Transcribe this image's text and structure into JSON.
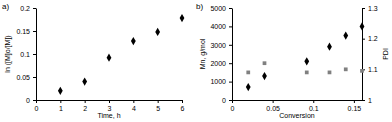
{
  "chart_data": [
    {
      "type": "scatter",
      "title": "a)",
      "x_label": "Time, h",
      "y_label": "ln ([M]o/[M])",
      "x": [
        1,
        2,
        3,
        4,
        5,
        6
      ],
      "series": [
        {
          "color": "#000000",
          "marker": "diamond",
          "values": [
            0.02,
            0.04,
            0.092,
            0.128,
            0.148,
            0.178
          ]
        }
      ],
      "xlim": [
        0,
        6
      ],
      "xticks": [
        0,
        1,
        2,
        3,
        4,
        5,
        6
      ],
      "ylim": [
        0,
        0.2
      ],
      "yticks": [
        0,
        0.05,
        0.1,
        0.15,
        0.2
      ]
    },
    {
      "type": "scatter",
      "title": "b)",
      "x_label": "Conversion",
      "y_label": "Mn, g/mol",
      "y2_label": "PDI",
      "x": [
        0.02,
        0.04,
        0.092,
        0.12,
        0.14,
        0.16
      ],
      "series": [
        {
          "color": "#000000",
          "marker": "diamond",
          "values": [
            700,
            1300,
            2100,
            2900,
            3500,
            4000
          ]
        },
        {
          "color": "#808080",
          "marker": "square",
          "axis": "y2",
          "values": [
            1.09,
            1.12,
            1.09,
            1.09,
            1.1,
            1.095
          ]
        }
      ],
      "xlim": [
        0,
        0.16
      ],
      "xticks": [
        0,
        0.05,
        0.1,
        0.15
      ],
      "ylim": [
        0,
        5000
      ],
      "yticks": [
        0,
        1000,
        2000,
        3000,
        4000,
        5000
      ],
      "y2lim": [
        1,
        1.3
      ],
      "y2ticks": [
        1,
        1.1,
        1.2,
        1.3
      ]
    }
  ]
}
